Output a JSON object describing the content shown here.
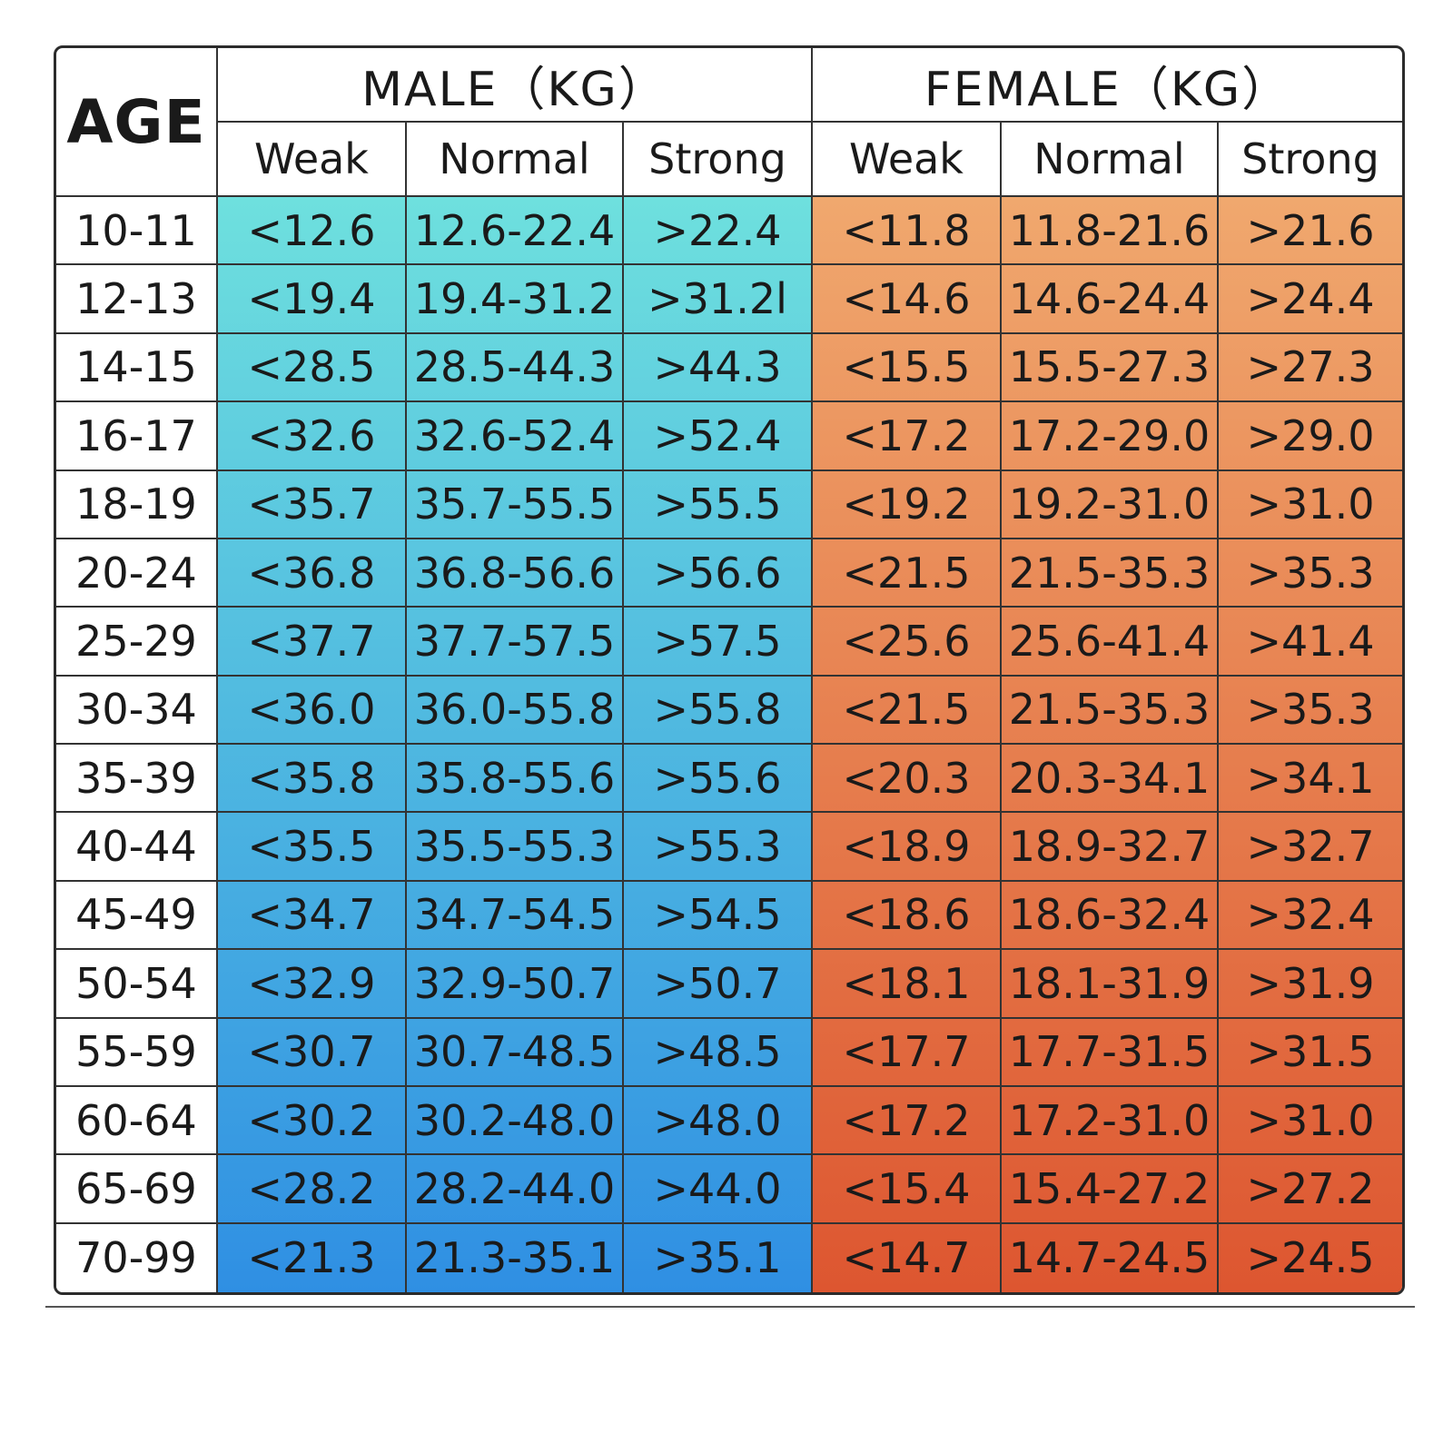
{
  "headers": {
    "age": "AGE",
    "male": "MALE（KG）",
    "female": "FEMALE（KG）",
    "male_levels": [
      "Weak",
      "Normal",
      "Strong"
    ],
    "female_levels": [
      "Weak",
      "Normal",
      "Strong"
    ]
  },
  "colors": {
    "male_gradient": [
      "#6ee0de",
      "#2f8fe3"
    ],
    "female_gradient": [
      "#f0a86e",
      "#dd5630"
    ],
    "grid_lines": "#333333"
  },
  "rows": [
    {
      "age": "10-11",
      "m_weak": "<12.6",
      "m_normal": "12.6-22.4",
      "m_strong": ">22.4",
      "f_weak": "<11.8",
      "f_normal": "11.8-21.6",
      "f_strong": ">21.6"
    },
    {
      "age": "12-13",
      "m_weak": "<19.4",
      "m_normal": "19.4-31.2",
      "m_strong": ">31.2l",
      "f_weak": "<14.6",
      "f_normal": "14.6-24.4",
      "f_strong": ">24.4"
    },
    {
      "age": "14-15",
      "m_weak": "<28.5",
      "m_normal": "28.5-44.3",
      "m_strong": ">44.3",
      "f_weak": "<15.5",
      "f_normal": "15.5-27.3",
      "f_strong": ">27.3"
    },
    {
      "age": "16-17",
      "m_weak": "<32.6",
      "m_normal": "32.6-52.4",
      "m_strong": ">52.4",
      "f_weak": "<17.2",
      "f_normal": "17.2-29.0",
      "f_strong": ">29.0"
    },
    {
      "age": "18-19",
      "m_weak": "<35.7",
      "m_normal": "35.7-55.5",
      "m_strong": ">55.5",
      "f_weak": "<19.2",
      "f_normal": "19.2-31.0",
      "f_strong": ">31.0"
    },
    {
      "age": "20-24",
      "m_weak": "<36.8",
      "m_normal": "36.8-56.6",
      "m_strong": ">56.6",
      "f_weak": "<21.5",
      "f_normal": "21.5-35.3",
      "f_strong": ">35.3"
    },
    {
      "age": "25-29",
      "m_weak": "<37.7",
      "m_normal": "37.7-57.5",
      "m_strong": ">57.5",
      "f_weak": "<25.6",
      "f_normal": "25.6-41.4",
      "f_strong": ">41.4"
    },
    {
      "age": "30-34",
      "m_weak": "<36.0",
      "m_normal": "36.0-55.8",
      "m_strong": ">55.8",
      "f_weak": "<21.5",
      "f_normal": "21.5-35.3",
      "f_strong": ">35.3"
    },
    {
      "age": "35-39",
      "m_weak": "<35.8",
      "m_normal": "35.8-55.6",
      "m_strong": ">55.6",
      "f_weak": "<20.3",
      "f_normal": "20.3-34.1",
      "f_strong": ">34.1"
    },
    {
      "age": "40-44",
      "m_weak": "<35.5",
      "m_normal": "35.5-55.3",
      "m_strong": ">55.3",
      "f_weak": "<18.9",
      "f_normal": "18.9-32.7",
      "f_strong": ">32.7"
    },
    {
      "age": "45-49",
      "m_weak": "<34.7",
      "m_normal": "34.7-54.5",
      "m_strong": ">54.5",
      "f_weak": "<18.6",
      "f_normal": "18.6-32.4",
      "f_strong": ">32.4"
    },
    {
      "age": "50-54",
      "m_weak": "<32.9",
      "m_normal": "32.9-50.7",
      "m_strong": ">50.7",
      "f_weak": "<18.1",
      "f_normal": "18.1-31.9",
      "f_strong": ">31.9"
    },
    {
      "age": "55-59",
      "m_weak": "<30.7",
      "m_normal": "30.7-48.5",
      "m_strong": ">48.5",
      "f_weak": "<17.7",
      "f_normal": "17.7-31.5",
      "f_strong": ">31.5"
    },
    {
      "age": "60-64",
      "m_weak": "<30.2",
      "m_normal": "30.2-48.0",
      "m_strong": ">48.0",
      "f_weak": "<17.2",
      "f_normal": "17.2-31.0",
      "f_strong": ">31.0"
    },
    {
      "age": "65-69",
      "m_weak": "<28.2",
      "m_normal": "28.2-44.0",
      "m_strong": ">44.0",
      "f_weak": "<15.4",
      "f_normal": "15.4-27.2",
      "f_strong": ">27.2"
    },
    {
      "age": "70-99",
      "m_weak": "<21.3",
      "m_normal": "21.3-35.1",
      "m_strong": ">35.1",
      "f_weak": "<14.7",
      "f_normal": "14.7-24.5",
      "f_strong": ">24.5"
    }
  ]
}
